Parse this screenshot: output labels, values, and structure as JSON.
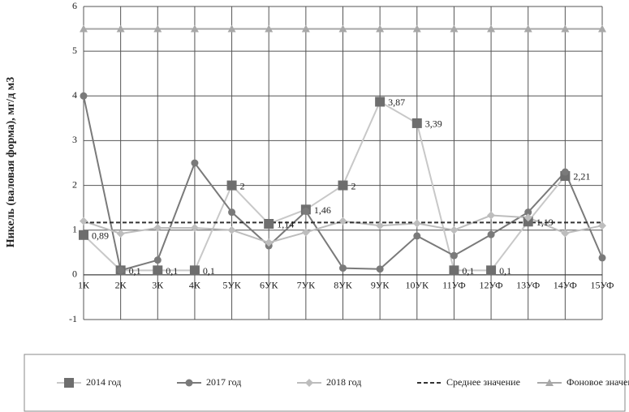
{
  "chart_data": {
    "type": "line",
    "y_label": "Никель (валовая форма), мг/д м3",
    "categories": [
      "1К",
      "2К",
      "3К",
      "4К",
      "5УК",
      "6УК",
      "7УК",
      "8УК",
      "9УК",
      "10УК",
      "11УФ",
      "12УФ",
      "13УФ",
      "14УФ",
      "15УФ"
    ],
    "ylim": [
      -1,
      6
    ],
    "yticks": [
      -1,
      0,
      1,
      2,
      3,
      4,
      5,
      6
    ],
    "grid": true,
    "legend": "bottom",
    "series": [
      {
        "name": "2014 год",
        "color": "#c8c8c8",
        "marker": "square",
        "marker_color": "#6e6e6e",
        "values": [
          0.89,
          0.1,
          0.1,
          0.1,
          2,
          1.14,
          1.46,
          2,
          3.87,
          3.39,
          0.1,
          0.1,
          1.19,
          2.21,
          null
        ],
        "value_labels": [
          "0,89",
          "0,1",
          "0,1",
          "0,1",
          "2",
          "1,14",
          "1,46",
          "2",
          "3,87",
          "3,39",
          "0,1",
          "0,1",
          "1,19",
          "2,21",
          null
        ]
      },
      {
        "name": "2017 год",
        "color": "#7a7a7a",
        "marker": "circle",
        "marker_color": "#7a7a7a",
        "values": [
          4.0,
          0.1,
          0.33,
          2.5,
          1.4,
          0.65,
          1.42,
          0.15,
          0.13,
          0.87,
          0.43,
          0.9,
          1.4,
          2.3,
          0.38
        ]
      },
      {
        "name": "2018 год",
        "color": "#bdbdbd",
        "marker": "diamond",
        "marker_color": "#bdbdbd",
        "values": [
          1.2,
          0.92,
          1.05,
          1.05,
          1.0,
          0.72,
          0.95,
          1.2,
          1.1,
          1.15,
          1.0,
          1.33,
          1.28,
          0.93,
          1.1
        ]
      },
      {
        "name": "Среднее значение",
        "color": "#333333",
        "marker": "none",
        "dashed": true,
        "values": [
          1.17,
          1.17,
          1.17,
          1.17,
          1.17,
          1.17,
          1.17,
          1.17,
          1.17,
          1.17,
          1.17,
          1.17,
          1.17,
          1.17,
          1.17
        ]
      },
      {
        "name": "Фоновое значение",
        "color": "#a8a8a8",
        "marker": "triangle",
        "marker_color": "#a8a8a8",
        "values": [
          5.5,
          5.5,
          5.5,
          5.5,
          5.5,
          5.5,
          5.5,
          5.5,
          5.5,
          5.5,
          5.5,
          5.5,
          5.5,
          5.5,
          5.5
        ]
      }
    ]
  }
}
